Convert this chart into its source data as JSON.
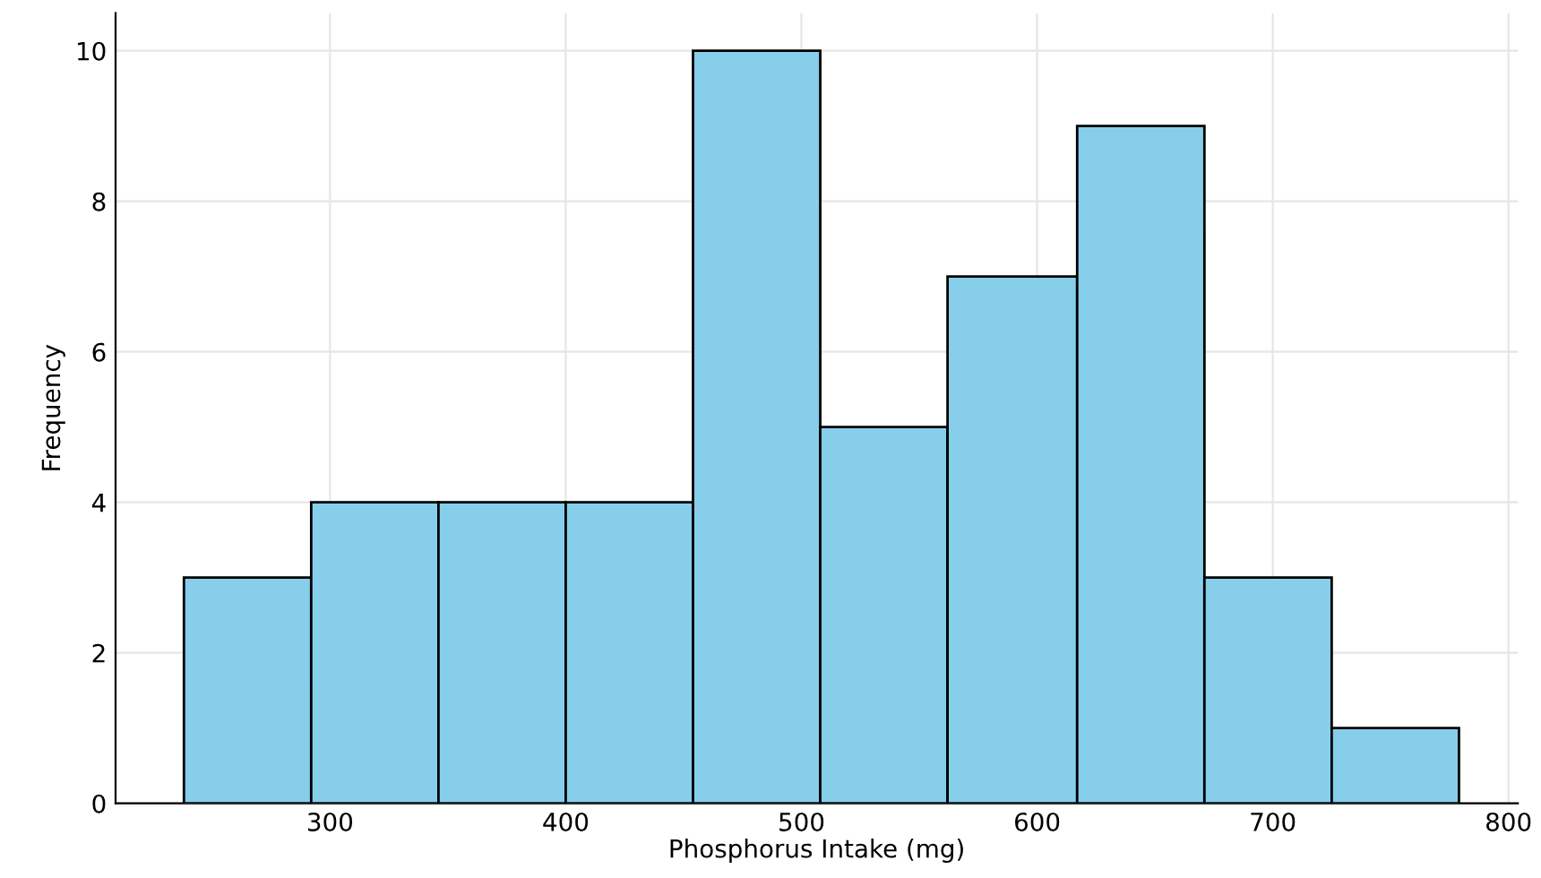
{
  "chart_data": {
    "type": "histogram",
    "xlabel": "Phosphorus Intake (mg)",
    "ylabel": "Frequency",
    "bins": [
      238,
      292,
      346,
      400,
      454,
      508,
      562,
      617,
      671,
      725,
      779
    ],
    "values": [
      3,
      4,
      4,
      4,
      10,
      5,
      7,
      9,
      3,
      1
    ],
    "color": "#87ceeb",
    "xlim": [
      209,
      804
    ],
    "xticks": [
      300,
      400,
      500,
      600,
      700,
      800
    ],
    "ylim": [
      0,
      10.5
    ],
    "yticks": [
      0,
      2,
      4,
      6,
      8,
      10
    ],
    "grid": true
  }
}
